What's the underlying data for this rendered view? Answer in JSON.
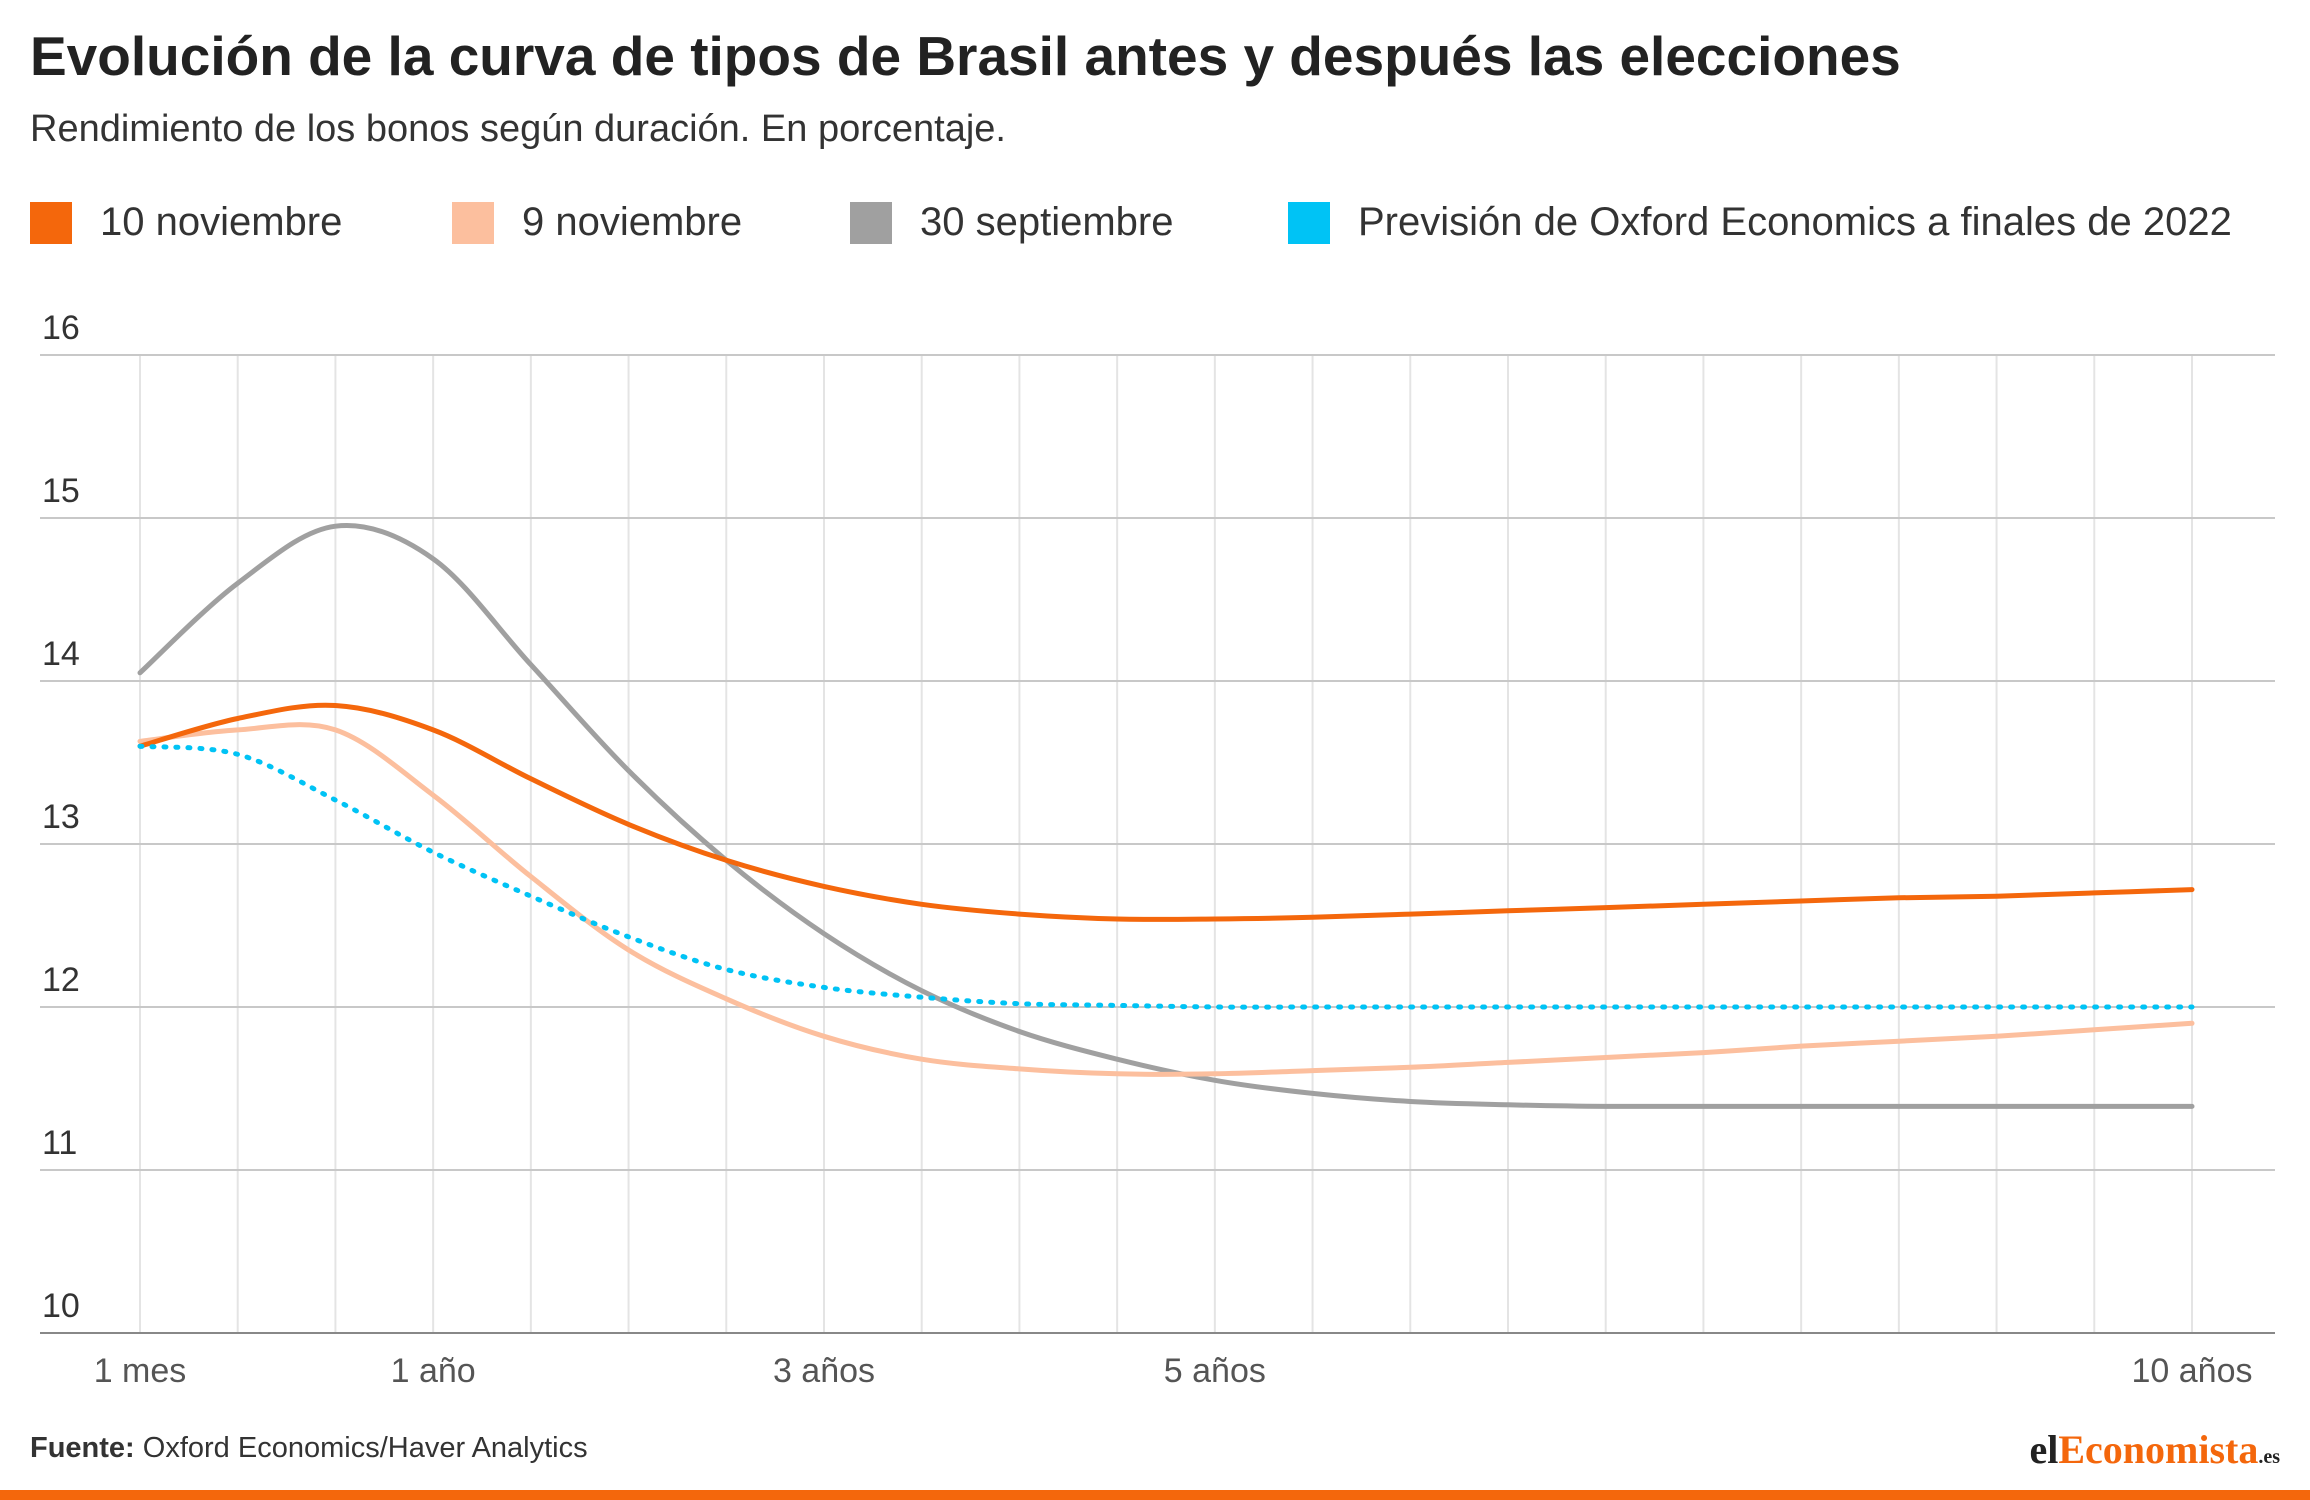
{
  "header": {
    "title": "Evolución de la curva de tipos de Brasil antes y después las elecciones",
    "subtitle": "Rendimiento de los bonos según duración. En porcentaje."
  },
  "legend": [
    {
      "label": "10 noviembre",
      "color": "#f4670c"
    },
    {
      "label": "9 noviembre",
      "color": "#fcbf9e"
    },
    {
      "label": "30 septiembre",
      "color": "#a0a0a0"
    },
    {
      "label": "Previsión de Oxford Economics a finales de 2022",
      "color": "#00c3f5"
    }
  ],
  "footer": {
    "source_label": "Fuente:",
    "source_text": "Oxford Economics/Haver Analytics"
  },
  "logo": {
    "part1": "el",
    "part2": "Economista",
    "part3": ".es"
  },
  "chart_data": {
    "type": "line",
    "x_tick_labels": [
      "1 mes",
      "1 año",
      "3 años",
      "5 años",
      "10 años"
    ],
    "ylim": [
      10,
      16
    ],
    "yticks": [
      10,
      11,
      12,
      13,
      14,
      15,
      16
    ],
    "grid": true,
    "legend_position": "top",
    "series": [
      {
        "name": "30 septiembre",
        "color": "#a0a0a0",
        "style": "solid",
        "values": [
          14.05,
          14.6,
          14.95,
          14.75,
          14.1,
          13.45,
          12.9,
          12.45,
          12.1,
          11.85,
          11.68,
          11.55,
          11.47,
          11.42,
          11.4,
          11.39,
          11.39,
          11.39,
          11.39,
          11.39,
          11.39,
          11.39
        ]
      },
      {
        "name": "9 noviembre",
        "color": "#fcbf9e",
        "style": "solid",
        "values": [
          13.63,
          13.7,
          13.7,
          13.3,
          12.8,
          12.35,
          12.05,
          11.82,
          11.68,
          11.62,
          11.59,
          11.59,
          11.61,
          11.63,
          11.66,
          11.69,
          11.72,
          11.76,
          11.79,
          11.82,
          11.86,
          11.9
        ]
      },
      {
        "name": "10 noviembre",
        "color": "#f4670c",
        "style": "solid",
        "values": [
          13.6,
          13.77,
          13.85,
          13.7,
          13.4,
          13.12,
          12.9,
          12.74,
          12.63,
          12.57,
          12.54,
          12.54,
          12.55,
          12.57,
          12.59,
          12.61,
          12.63,
          12.65,
          12.67,
          12.68,
          12.7,
          12.72
        ]
      },
      {
        "name": "Previsión de Oxford Economics a finales de 2022",
        "color": "#00c3f5",
        "style": "dotted",
        "values": [
          13.6,
          13.55,
          13.27,
          12.95,
          12.68,
          12.43,
          12.23,
          12.12,
          12.06,
          12.02,
          12.01,
          12.0,
          12.0,
          12.0,
          12.0,
          12.0,
          12.0,
          12.0,
          12.0,
          12.0,
          12.0,
          12.0
        ]
      }
    ]
  }
}
